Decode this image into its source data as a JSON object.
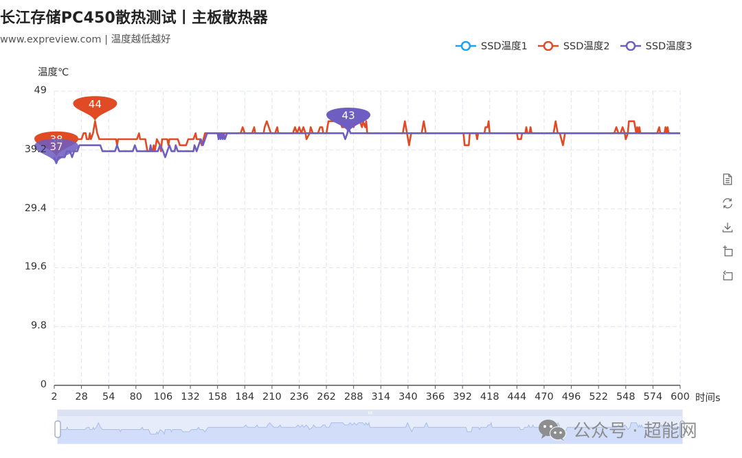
{
  "header": {
    "title": "长江存储PC450散热测试丨主板散热器",
    "subtitle": "www.expreview.com | 温度越低越好"
  },
  "legend": [
    {
      "name": "SSD温度1",
      "color": "#1aa3f0"
    },
    {
      "name": "SSD温度2",
      "color": "#e04a24"
    },
    {
      "name": "SSD温度3",
      "color": "#6f5ec2"
    }
  ],
  "axes": {
    "y_name": "温度℃",
    "x_name": "时间s",
    "y_ticks": [
      "0",
      "9.8",
      "19.6",
      "29.4",
      "39.2",
      "49"
    ],
    "x_ticks": [
      "2",
      "28",
      "54",
      "80",
      "106",
      "132",
      "158",
      "184",
      "210",
      "236",
      "262",
      "288",
      "314",
      "340",
      "366",
      "392",
      "418",
      "444",
      "470",
      "496",
      "522",
      "548",
      "574",
      "600"
    ]
  },
  "toolbox": [
    {
      "name": "data-view-icon",
      "label": "数据视图"
    },
    {
      "name": "restore-icon",
      "label": "还原"
    },
    {
      "name": "save-image-icon",
      "label": "保存为图片"
    },
    {
      "name": "zoom-area-icon",
      "label": "区域缩放"
    },
    {
      "name": "zoom-reset-icon",
      "label": "区域缩放还原"
    }
  ],
  "watermark": {
    "text": "公众号 · 超能网"
  },
  "chart_data": {
    "type": "line",
    "title": "长江存储PC450散热测试丨主板散热器",
    "subtitle": "www.expreview.com | 温度越低越好",
    "xlabel": "时间s",
    "ylabel": "温度℃",
    "xlim": [
      2,
      600
    ],
    "ylim": [
      0,
      49
    ],
    "grid": true,
    "legend_position": "top-right",
    "dataZoom": true,
    "series": [
      {
        "name": "SSD温度1",
        "color": "#1aa3f0",
        "points": []
      },
      {
        "name": "SSD温度2",
        "color": "#e04a24",
        "markPoints": [
          {
            "label": "最大值",
            "x": 41,
            "y": 44
          },
          {
            "label": "最小值",
            "x": 4,
            "y": 38
          }
        ],
        "points": [
          [
            2,
            41
          ],
          [
            10,
            41
          ],
          [
            11,
            42
          ],
          [
            12,
            41
          ],
          [
            28,
            41
          ],
          [
            30,
            42
          ],
          [
            32,
            42
          ],
          [
            33,
            41
          ],
          [
            35,
            41
          ],
          [
            36,
            42
          ],
          [
            37,
            41
          ],
          [
            39,
            42
          ],
          [
            41,
            44
          ],
          [
            43,
            42
          ],
          [
            45,
            41
          ],
          [
            61,
            41
          ],
          [
            62,
            40
          ],
          [
            63,
            41
          ],
          [
            81,
            41
          ],
          [
            83,
            42
          ],
          [
            84,
            41
          ],
          [
            89,
            41
          ],
          [
            91,
            39
          ],
          [
            96,
            39
          ],
          [
            97,
            40
          ],
          [
            98,
            39
          ],
          [
            100,
            41
          ],
          [
            103,
            40
          ],
          [
            104,
            39
          ],
          [
            105,
            41
          ],
          [
            110,
            41
          ],
          [
            111,
            40
          ],
          [
            112,
            41
          ],
          [
            120,
            41
          ],
          [
            122,
            40
          ],
          [
            128,
            40
          ],
          [
            130,
            41
          ],
          [
            135,
            41
          ],
          [
            137,
            42
          ],
          [
            138,
            41
          ],
          [
            141,
            41
          ],
          [
            143,
            40
          ],
          [
            146,
            42
          ],
          [
            150,
            42
          ],
          [
            152,
            42
          ],
          [
            158,
            42
          ],
          [
            160,
            42
          ],
          [
            161,
            42
          ],
          [
            170,
            42
          ],
          [
            172,
            42
          ],
          [
            180,
            42
          ],
          [
            182,
            43
          ],
          [
            184,
            42
          ],
          [
            191,
            42
          ],
          [
            193,
            43
          ],
          [
            194,
            42
          ],
          [
            200,
            42
          ],
          [
            202,
            42
          ],
          [
            203,
            43
          ],
          [
            205,
            44
          ],
          [
            207,
            43
          ],
          [
            209,
            42
          ],
          [
            213,
            42
          ],
          [
            215,
            43
          ],
          [
            216,
            42
          ],
          [
            230,
            42
          ],
          [
            232,
            43
          ],
          [
            234,
            42
          ],
          [
            236,
            43
          ],
          [
            238,
            42
          ],
          [
            240,
            43
          ],
          [
            242,
            42
          ],
          [
            243,
            41
          ],
          [
            246,
            42
          ],
          [
            247,
            43
          ],
          [
            249,
            42
          ],
          [
            254,
            42
          ],
          [
            256,
            43
          ],
          [
            258,
            43
          ],
          [
            259,
            42
          ],
          [
            262,
            42
          ],
          [
            264,
            44
          ],
          [
            275,
            44
          ],
          [
            277,
            43
          ],
          [
            280,
            43
          ],
          [
            282,
            44
          ],
          [
            284,
            43
          ],
          [
            286,
            44
          ],
          [
            288,
            43
          ],
          [
            290,
            44
          ],
          [
            294,
            44
          ],
          [
            296,
            43
          ],
          [
            297,
            44
          ],
          [
            299,
            43
          ],
          [
            300,
            44
          ],
          [
            301,
            42
          ],
          [
            335,
            42
          ],
          [
            337,
            44
          ],
          [
            339,
            42
          ],
          [
            341,
            40
          ],
          [
            343,
            42
          ],
          [
            353,
            42
          ],
          [
            355,
            44
          ],
          [
            357,
            42
          ],
          [
            393,
            42
          ],
          [
            394,
            40
          ],
          [
            398,
            40
          ],
          [
            399,
            42
          ],
          [
            405,
            42
          ],
          [
            406,
            41
          ],
          [
            407,
            42
          ],
          [
            413,
            42
          ],
          [
            414,
            43
          ],
          [
            416,
            43
          ],
          [
            417,
            44
          ],
          [
            418,
            42
          ],
          [
            444,
            42
          ],
          [
            445,
            41
          ],
          [
            448,
            41
          ],
          [
            449,
            42
          ],
          [
            452,
            42
          ],
          [
            453,
            43
          ],
          [
            454,
            42
          ],
          [
            456,
            42
          ],
          [
            457,
            43
          ],
          [
            458,
            42
          ],
          [
            479,
            42
          ],
          [
            481,
            44
          ],
          [
            483,
            42
          ],
          [
            485,
            42
          ],
          [
            488,
            40
          ],
          [
            490,
            42
          ],
          [
            537,
            42
          ],
          [
            539,
            43
          ],
          [
            541,
            42
          ],
          [
            543,
            42
          ],
          [
            545,
            43
          ],
          [
            547,
            42
          ],
          [
            548,
            41
          ],
          [
            550,
            42
          ],
          [
            551,
            44
          ],
          [
            556,
            44
          ],
          [
            557,
            43
          ],
          [
            558,
            42
          ],
          [
            559,
            43
          ],
          [
            560,
            42
          ],
          [
            561,
            43
          ],
          [
            562,
            42
          ],
          [
            578,
            42
          ],
          [
            580,
            43
          ],
          [
            581,
            42
          ],
          [
            585,
            42
          ],
          [
            586,
            43
          ],
          [
            587,
            42
          ],
          [
            588,
            43
          ],
          [
            589,
            42
          ],
          [
            600,
            42
          ]
        ]
      },
      {
        "name": "SSD温度3",
        "color": "#6f5ec2",
        "markPoints": [
          {
            "label": "最大值",
            "x": 283,
            "y": 43
          },
          {
            "label": "最小值",
            "x": 4,
            "y": 37
          }
        ],
        "points": [
          [
            2,
            38
          ],
          [
            4,
            37
          ],
          [
            6,
            38
          ],
          [
            12,
            38
          ],
          [
            14,
            39
          ],
          [
            17,
            39
          ],
          [
            19,
            38
          ],
          [
            21,
            39
          ],
          [
            24,
            39
          ],
          [
            26,
            40
          ],
          [
            46,
            40
          ],
          [
            48,
            39
          ],
          [
            60,
            39
          ],
          [
            62,
            40
          ],
          [
            64,
            39
          ],
          [
            77,
            39
          ],
          [
            79,
            40
          ],
          [
            81,
            39
          ],
          [
            93,
            39
          ],
          [
            94,
            40
          ],
          [
            95,
            39
          ],
          [
            101,
            39
          ],
          [
            103,
            40
          ],
          [
            106,
            39
          ],
          [
            108,
            38
          ],
          [
            110,
            39
          ],
          [
            112,
            40
          ],
          [
            114,
            39
          ],
          [
            117,
            39
          ],
          [
            118,
            40
          ],
          [
            120,
            39
          ],
          [
            135,
            39
          ],
          [
            136,
            40
          ],
          [
            138,
            39
          ],
          [
            140,
            40
          ],
          [
            142,
            41
          ],
          [
            144,
            40
          ],
          [
            146,
            41
          ],
          [
            148,
            42
          ],
          [
            158,
            42
          ],
          [
            159,
            41
          ],
          [
            160,
            42
          ],
          [
            161,
            41
          ],
          [
            162,
            42
          ],
          [
            163,
            41
          ],
          [
            164,
            42
          ],
          [
            165,
            41
          ],
          [
            167,
            42
          ],
          [
            278,
            42
          ],
          [
            280,
            41
          ],
          [
            282,
            42
          ],
          [
            283,
            43
          ],
          [
            285,
            42
          ],
          [
            600,
            42
          ]
        ]
      }
    ]
  }
}
